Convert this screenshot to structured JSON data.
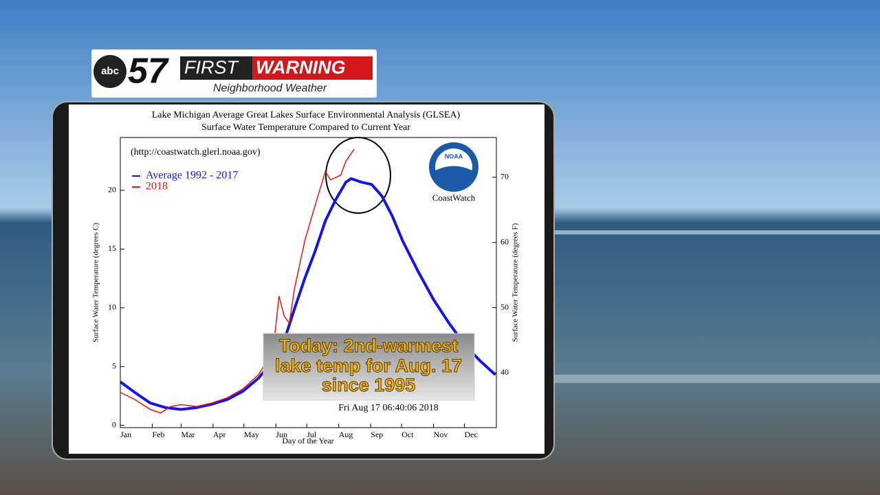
{
  "logo": {
    "network": "abc",
    "number": "57",
    "first": "FIRST",
    "warning": "WARNING",
    "tagline": "Neighborhood Weather"
  },
  "overlay": {
    "lines": [
      "Today: 2nd-warmest",
      "lake temp for Aug. 17",
      "since 1995"
    ]
  },
  "chart_data": {
    "type": "line",
    "title": "Lake Michigan Average Great Lakes Surface Environmental Analysis (GLSEA)",
    "subtitle": "Surface Water Temperature Compared to Current Year",
    "source": "(http://coastwatch.glerl.noaa.gov)",
    "logo_text": "NOAA",
    "logo_caption": "CoastWatch",
    "timestamp": "Fri Aug 17 06:40:06 2018",
    "x_label": "Day of the Year",
    "y_label": "Surface Water Temperature (degrees C)",
    "y2_label": "Surface Water Temperature (degrees F)",
    "xlim": [
      1,
      366
    ],
    "xticks": [
      {
        "value": 1,
        "label": "Jan"
      },
      {
        "value": 32,
        "label": "Feb"
      },
      {
        "value": 60,
        "label": "Mar"
      },
      {
        "value": 91,
        "label": "Apr"
      },
      {
        "value": 121,
        "label": "May"
      },
      {
        "value": 152,
        "label": "Jun"
      },
      {
        "value": 182,
        "label": "Jul"
      },
      {
        "value": 213,
        "label": "Aug"
      },
      {
        "value": 244,
        "label": "Sep"
      },
      {
        "value": 274,
        "label": "Oct"
      },
      {
        "value": 305,
        "label": "Nov"
      },
      {
        "value": 335,
        "label": "Dec"
      }
    ],
    "ylim": [
      -0.2,
      24.5
    ],
    "yticks": [
      0,
      5,
      10,
      15,
      20
    ],
    "y2lim": [
      31.6,
      76.1
    ],
    "y2ticks": [
      40,
      50,
      60,
      70
    ],
    "series": [
      {
        "name": "Average 1992 - 2017",
        "color": "#1414e6",
        "x": [
          1,
          15,
          30,
          45,
          60,
          75,
          90,
          105,
          120,
          135,
          150,
          160,
          170,
          180,
          190,
          200,
          210,
          220,
          225,
          235,
          245,
          255,
          265,
          275,
          290,
          305,
          320,
          335,
          350,
          365
        ],
        "values": [
          3.7,
          2.8,
          1.9,
          1.5,
          1.35,
          1.5,
          1.8,
          2.2,
          2.9,
          4.0,
          5.6,
          7.2,
          9.9,
          12.5,
          14.8,
          17.4,
          19.2,
          20.7,
          21.0,
          20.7,
          20.5,
          19.5,
          17.8,
          15.7,
          13.1,
          10.7,
          8.7,
          6.9,
          5.5,
          4.3
        ]
      },
      {
        "name": "2018",
        "color": "#e61414",
        "x": [
          1,
          15,
          30,
          40,
          50,
          60,
          75,
          90,
          105,
          120,
          135,
          145,
          150,
          155,
          160,
          165,
          170,
          180,
          190,
          200,
          205,
          215,
          220,
          228
        ],
        "values": [
          2.8,
          2.2,
          1.35,
          1.05,
          1.6,
          1.75,
          1.6,
          1.9,
          2.35,
          3.1,
          4.3,
          5.7,
          6.9,
          11.0,
          9.3,
          8.7,
          11.6,
          15.7,
          18.7,
          21.6,
          20.9,
          21.3,
          22.5,
          23.5
        ]
      }
    ]
  }
}
